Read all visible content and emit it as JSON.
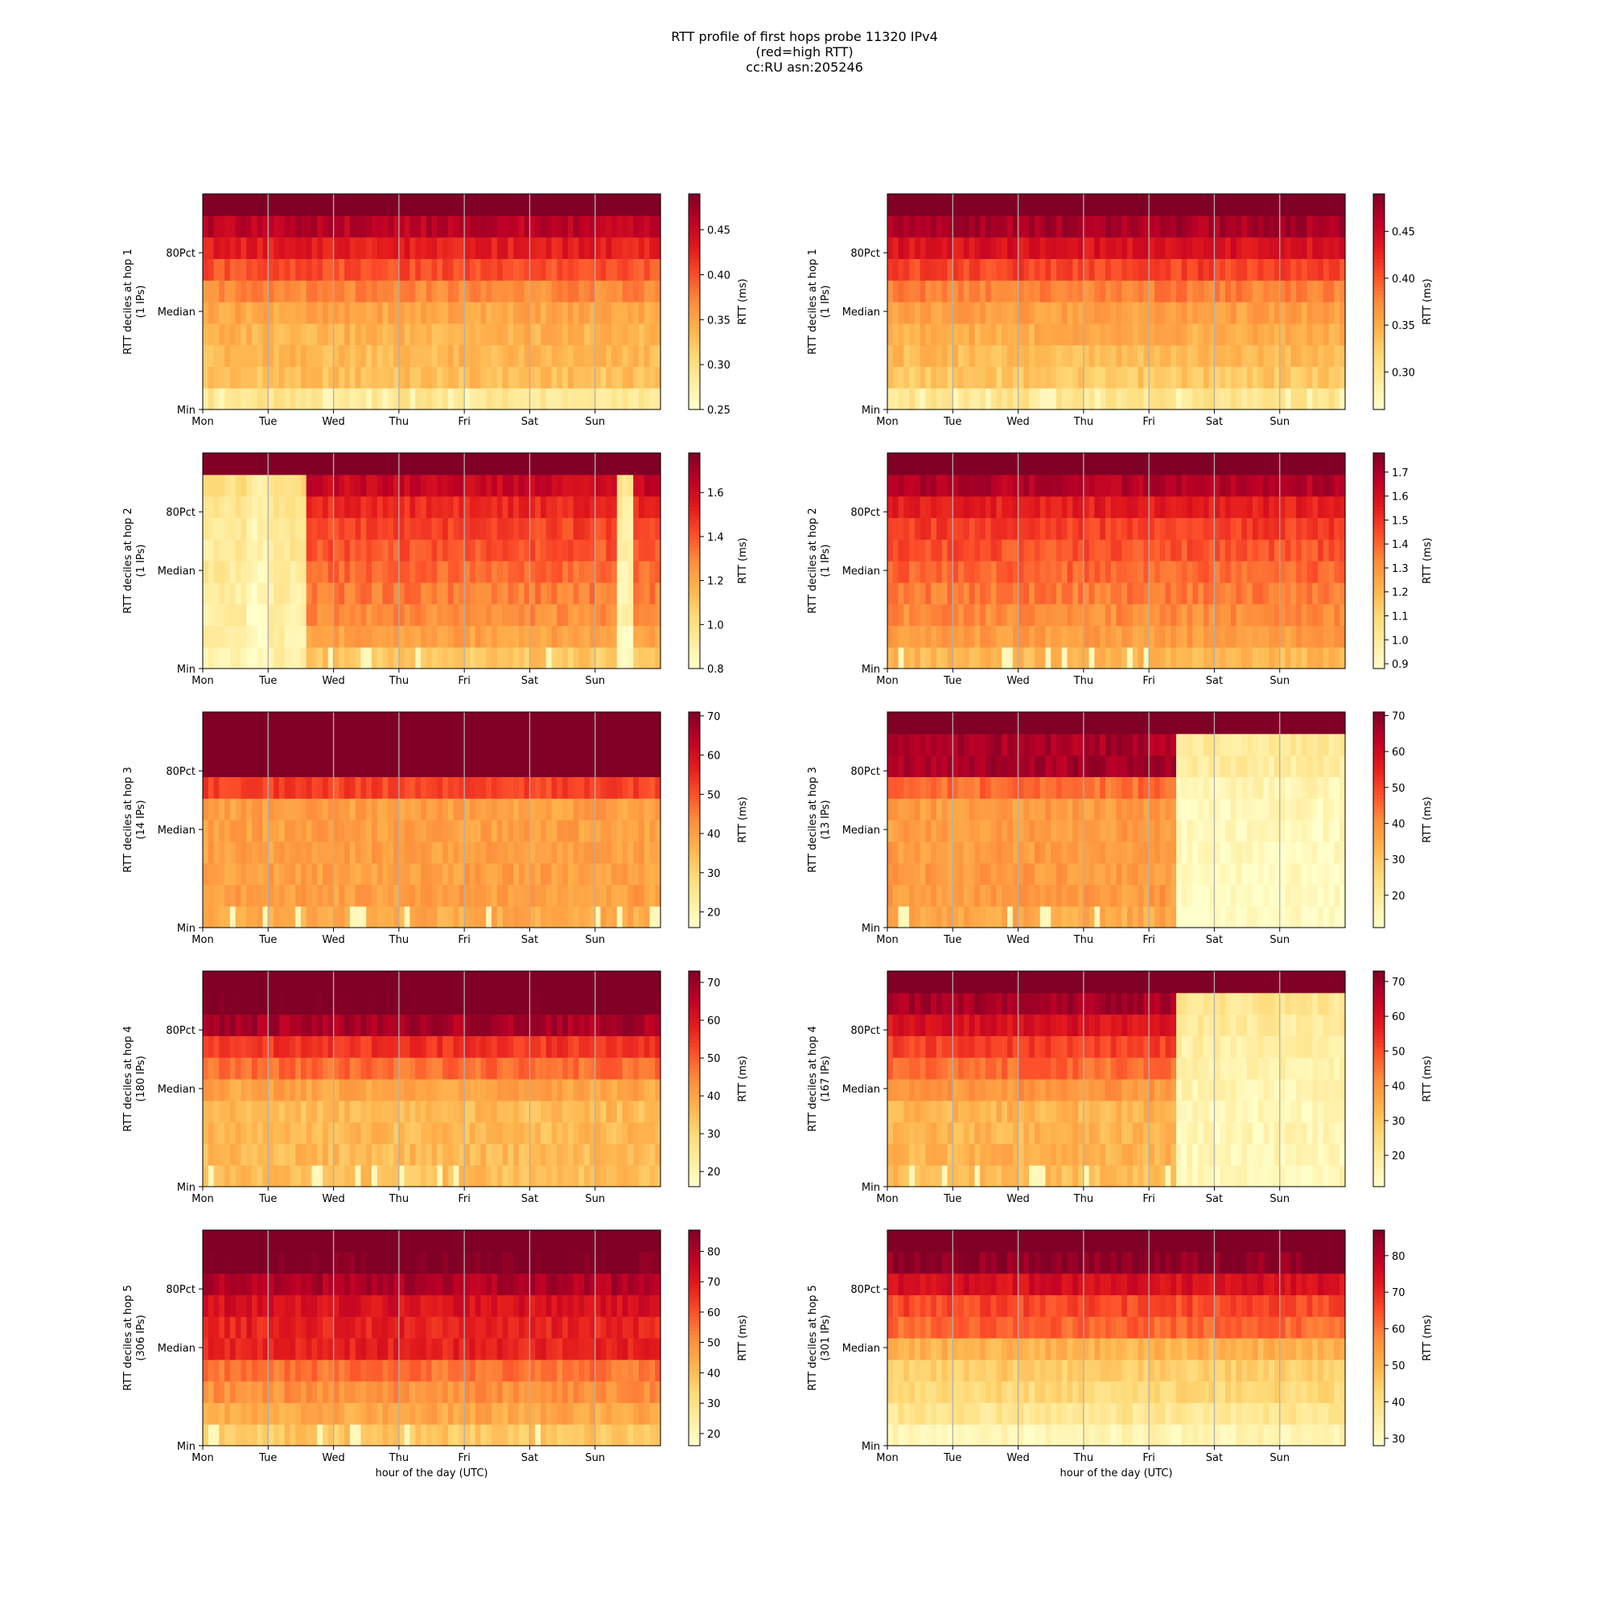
{
  "figure": {
    "title_lines": [
      "RTT profile of first hops probe 11320 IPv4",
      "(red=high RTT)",
      "cc:RU asn:205246"
    ]
  },
  "chart_data": {
    "type": "heatmap",
    "x_tick_labels": [
      "Mon",
      "Tue",
      "Wed",
      "Thu",
      "Fri",
      "Sat",
      "Sun"
    ],
    "y_tick_labels": [
      "Min",
      "Median",
      "80Pct"
    ],
    "xlabel": "hour of the day (UTC)",
    "colorbar_label": "RTT (ms)",
    "colormap": [
      "#ffffcc",
      "#ffeda0",
      "#fed976",
      "#feb24c",
      "#fd8d3c",
      "#fc4e2a",
      "#e31a1c",
      "#bd0026",
      "#800026"
    ],
    "grid_color": "#b0b0b0",
    "panels": [
      {
        "column": "left",
        "hop": 1,
        "ylabel": "RTT deciles at hop 1",
        "ips": "(1 IPs)",
        "cmin": 0.25,
        "cmax": 0.49,
        "cbar_ticks": [
          "0.25",
          "0.30",
          "0.35",
          "0.40",
          "0.45"
        ],
        "deciles": [
          0.29,
          0.33,
          0.335,
          0.34,
          0.35,
          0.37,
          0.4,
          0.43,
          0.46,
          0.51
        ],
        "anomalies": []
      },
      {
        "column": "right",
        "hop": 1,
        "ylabel": "RTT deciles at hop 1",
        "ips": "(1 IPs)",
        "cmin": 0.26,
        "cmax": 0.49,
        "cbar_ticks": [
          "0.30",
          "0.35",
          "0.40",
          "0.45"
        ],
        "deciles": [
          0.3,
          0.33,
          0.34,
          0.35,
          0.36,
          0.38,
          0.41,
          0.44,
          0.47,
          0.51
        ],
        "anomalies": []
      },
      {
        "column": "left",
        "hop": 2,
        "ylabel": "RTT deciles at hop 2",
        "ips": "(1 IPs)",
        "cmin": 0.8,
        "cmax": 1.78,
        "cbar_ticks": [
          "0.8",
          "1.0",
          "1.2",
          "1.4",
          "1.6"
        ],
        "deciles": [
          1.1,
          1.22,
          1.28,
          1.32,
          1.36,
          1.4,
          1.44,
          1.5,
          1.62,
          1.85
        ],
        "anomalies": [
          {
            "x0": 0.0,
            "x1": 0.23,
            "level": 0.9
          },
          {
            "x0": 0.095,
            "x1": 0.145,
            "level": 0.82
          },
          {
            "x0": 0.9,
            "x1": 0.935,
            "level": 0.85
          }
        ]
      },
      {
        "column": "right",
        "hop": 2,
        "ylabel": "RTT deciles at hop 2",
        "ips": "(1 IPs)",
        "cmin": 0.88,
        "cmax": 1.78,
        "cbar_ticks": [
          "0.9",
          "1.0",
          "1.1",
          "1.2",
          "1.3",
          "1.4",
          "1.5",
          "1.6",
          "1.7"
        ],
        "deciles": [
          1.2,
          1.28,
          1.32,
          1.36,
          1.4,
          1.44,
          1.48,
          1.55,
          1.68,
          1.85
        ],
        "anomalies": []
      },
      {
        "column": "left",
        "hop": 3,
        "ylabel": "RTT deciles at hop 3",
        "ips": "(14 IPs)",
        "cmin": 16,
        "cmax": 71,
        "cbar_ticks": [
          "20",
          "30",
          "40",
          "50",
          "60",
          "70"
        ],
        "deciles": [
          38,
          40,
          40,
          40,
          40,
          40,
          52,
          75,
          75,
          75
        ],
        "anomalies": []
      },
      {
        "column": "right",
        "hop": 3,
        "ylabel": "RTT deciles at hop 3",
        "ips": "(13 IPs)",
        "cmin": 11,
        "cmax": 71,
        "cbar_ticks": [
          "20",
          "30",
          "40",
          "50",
          "60",
          "70"
        ],
        "deciles": [
          35,
          38,
          38,
          38,
          38,
          38,
          45,
          66,
          66,
          75
        ],
        "anomalies": [
          {
            "x0": 0.63,
            "x1": 1.0,
            "level": 12
          }
        ]
      },
      {
        "column": "left",
        "hop": 4,
        "ylabel": "RTT deciles at hop 4",
        "ips": "(180 IPs)",
        "cmin": 16,
        "cmax": 73,
        "cbar_ticks": [
          "20",
          "30",
          "40",
          "50",
          "60",
          "70"
        ],
        "deciles": [
          35,
          36,
          36,
          36,
          40,
          48,
          55,
          68,
          75,
          78
        ],
        "anomalies": []
      },
      {
        "column": "right",
        "hop": 4,
        "ylabel": "RTT deciles at hop 4",
        "ips": "(167 IPs)",
        "cmin": 11,
        "cmax": 73,
        "cbar_ticks": [
          "20",
          "30",
          "40",
          "50",
          "60",
          "70"
        ],
        "deciles": [
          32,
          34,
          34,
          34,
          40,
          46,
          52,
          60,
          68,
          78
        ],
        "anomalies": [
          {
            "x0": 0.63,
            "x1": 1.0,
            "level": 14
          }
        ]
      },
      {
        "column": "left",
        "hop": 5,
        "ylabel": "RTT deciles at hop 5",
        "ips": "(306 IPs)",
        "cmin": 16,
        "cmax": 87,
        "cbar_ticks": [
          "20",
          "30",
          "40",
          "50",
          "60",
          "70",
          "80"
        ],
        "deciles": [
          38,
          45,
          50,
          55,
          68,
          68,
          72,
          80,
          88,
          92
        ],
        "anomalies": []
      },
      {
        "column": "right",
        "hop": 5,
        "ylabel": "RTT deciles at hop 5",
        "ips": "(301 IPs)",
        "cmin": 28,
        "cmax": 87,
        "cbar_ticks": [
          "30",
          "40",
          "50",
          "60",
          "70",
          "80"
        ],
        "deciles": [
          32,
          38,
          42,
          45,
          50,
          62,
          66,
          75,
          85,
          92
        ],
        "anomalies": []
      }
    ]
  }
}
